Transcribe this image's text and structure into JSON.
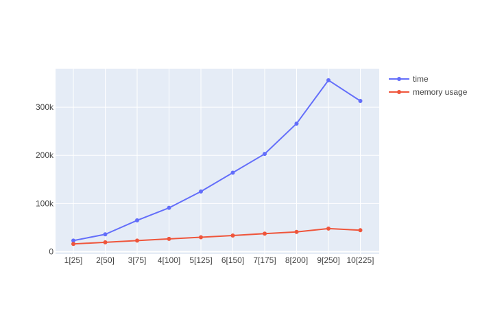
{
  "chart_data": {
    "type": "line",
    "title": "",
    "xlabel": "",
    "ylabel": "",
    "categories": [
      "1[25]",
      "2[50]",
      "3[75]",
      "4[100]",
      "5[125]",
      "6[150]",
      "7[175]",
      "8[200]",
      "9[250]",
      "10[225]"
    ],
    "series": [
      {
        "name": "time",
        "color": "#636efa",
        "values": [
          23000,
          36000,
          65000,
          91000,
          125000,
          164000,
          203000,
          266000,
          356000,
          313000
        ]
      },
      {
        "name": "memory usage",
        "color": "#ef553b",
        "values": [
          16000,
          19500,
          23000,
          26500,
          30000,
          33500,
          37500,
          41000,
          48000,
          44500
        ]
      }
    ],
    "ylim": [
      -5000,
      380000
    ],
    "yticks": [
      {
        "value": 0,
        "label": "0"
      },
      {
        "value": 100000,
        "label": "100k"
      },
      {
        "value": 200000,
        "label": "200k"
      },
      {
        "value": 300000,
        "label": "300k"
      }
    ],
    "grid": true,
    "legend_position": "top-right",
    "plot_background": "#e5ecf6",
    "grid_color": "#ffffff"
  }
}
